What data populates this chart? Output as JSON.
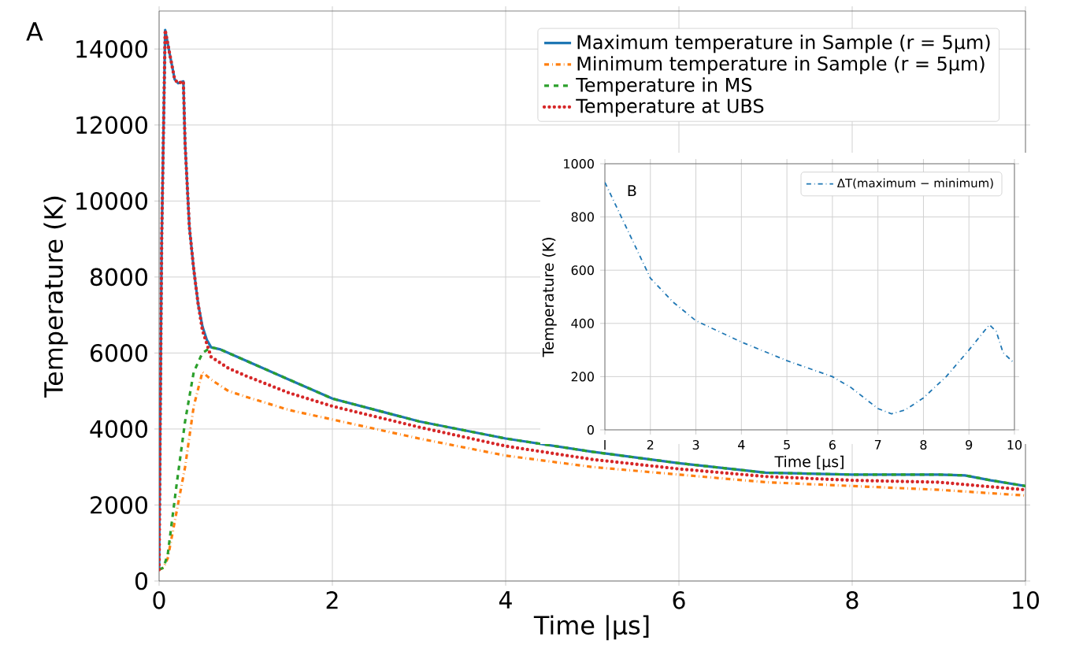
{
  "chart_data": [
    {
      "type": "line",
      "xlabel": "Time |μs]",
      "ylabel": "Temperature (K)",
      "annotations": [
        "A"
      ],
      "xlim": [
        0,
        10
      ],
      "ylim": [
        0,
        15000
      ],
      "xticks": [
        0,
        2,
        4,
        6,
        8,
        10
      ],
      "yticks": [
        0,
        2000,
        4000,
        6000,
        8000,
        10000,
        12000,
        14000
      ],
      "grid": true,
      "legend": "top right",
      "series": [
        {
          "name": "Maximum temperature in Sample (r = 5μm)",
          "color": "#1f77b4",
          "line_style": "solid",
          "x": [
            0,
            0.03,
            0.07,
            0.12,
            0.18,
            0.22,
            0.28,
            0.3,
            0.35,
            0.4,
            0.45,
            0.5,
            0.55,
            0.6,
            0.7,
            1,
            1.5,
            2,
            3,
            4,
            5,
            6,
            7,
            8,
            9,
            9.3,
            9.6,
            10
          ],
          "values": [
            300,
            9000,
            14500,
            13900,
            13200,
            13100,
            13150,
            11500,
            9300,
            8200,
            7300,
            6700,
            6350,
            6150,
            6100,
            5800,
            5300,
            4800,
            4200,
            3750,
            3400,
            3100,
            2850,
            2800,
            2800,
            2780,
            2650,
            2500
          ]
        },
        {
          "name": "Minimum temperature in Sample (r = 5μm)",
          "color": "#ff7f0e",
          "line_style": "dashdot",
          "x": [
            0,
            0.05,
            0.1,
            0.2,
            0.3,
            0.4,
            0.5,
            0.6,
            0.8,
            1,
            1.5,
            2,
            3,
            4,
            5,
            6,
            7,
            8,
            9,
            10
          ],
          "values": [
            300,
            350,
            600,
            1800,
            3000,
            4600,
            5500,
            5300,
            5000,
            4850,
            4500,
            4250,
            3750,
            3300,
            3000,
            2800,
            2600,
            2500,
            2400,
            2250
          ]
        },
        {
          "name": "Temperature in MS",
          "color": "#2ca02c",
          "line_style": "dashed",
          "x": [
            0,
            0.05,
            0.1,
            0.2,
            0.3,
            0.4,
            0.5,
            0.6,
            0.7,
            1,
            1.5,
            2,
            3,
            4,
            5,
            6,
            7,
            8,
            9,
            9.3,
            9.6,
            10
          ],
          "values": [
            300,
            350,
            700,
            2500,
            4200,
            5500,
            6000,
            6150,
            6100,
            5800,
            5300,
            4800,
            4200,
            3750,
            3400,
            3100,
            2850,
            2800,
            2800,
            2780,
            2650,
            2500
          ]
        },
        {
          "name": "Temperature at UBS",
          "color": "#d62728",
          "line_style": "dotted",
          "x": [
            0,
            0.03,
            0.07,
            0.12,
            0.18,
            0.22,
            0.28,
            0.3,
            0.35,
            0.4,
            0.45,
            0.5,
            0.6,
            0.8,
            1,
            1.5,
            2,
            3,
            4,
            5,
            6,
            7,
            8,
            9,
            10
          ],
          "values": [
            300,
            9000,
            14500,
            13900,
            13200,
            13100,
            13150,
            11500,
            9300,
            8200,
            7300,
            6600,
            5900,
            5600,
            5400,
            4950,
            4600,
            4050,
            3550,
            3200,
            2950,
            2750,
            2650,
            2600,
            2400
          ]
        }
      ]
    },
    {
      "type": "line",
      "xlabel": "Time [μs]",
      "ylabel": "Temperature (K)",
      "annotations": [
        "B"
      ],
      "xlim": [
        1,
        10
      ],
      "ylim": [
        0,
        1000
      ],
      "xticks": [
        {
          "value": 1,
          "label": "l"
        },
        2,
        3,
        4,
        5,
        6,
        7,
        8,
        9,
        10
      ],
      "yticks": [
        0,
        200,
        400,
        600,
        800,
        1000
      ],
      "grid": true,
      "legend": "top right",
      "series": [
        {
          "name": "ΔT(maximum − minimum)",
          "color": "#1f77b4",
          "line_style": "dashdot",
          "x": [
            1,
            1.5,
            2,
            2.5,
            3,
            4,
            5,
            6,
            6.4,
            7,
            7.3,
            7.6,
            8,
            8.5,
            9,
            9.45,
            9.6,
            9.75,
            10
          ],
          "values": [
            930,
            750,
            570,
            480,
            410,
            330,
            260,
            200,
            160,
            80,
            60,
            75,
            120,
            200,
            300,
            395,
            370,
            290,
            250
          ]
        }
      ]
    }
  ]
}
